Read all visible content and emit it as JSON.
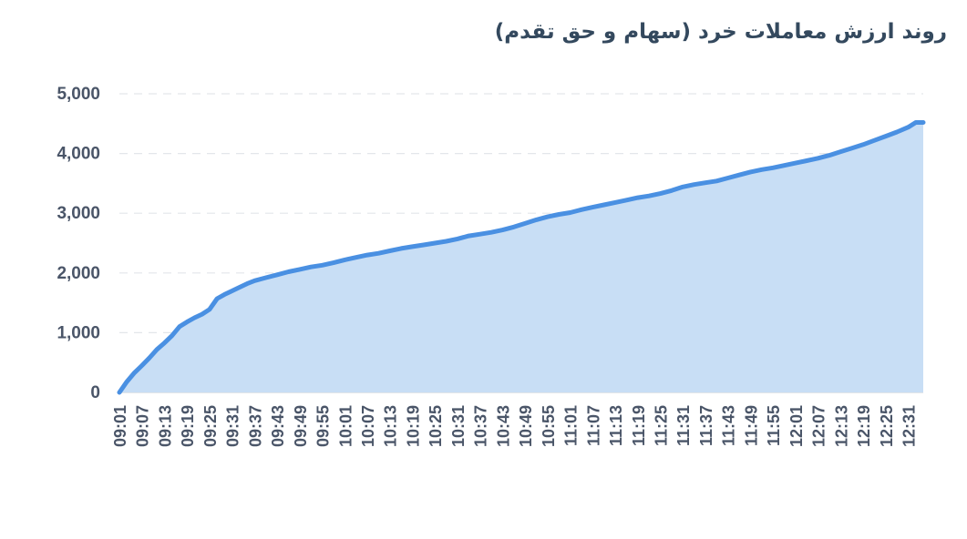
{
  "chart_data": {
    "type": "area",
    "title": "روند ارزش معاملات خرد (سهام و حق تقدم)",
    "xlabel": "",
    "ylabel": "",
    "ylim": [
      0,
      5000
    ],
    "y_ticks": [
      "0",
      "1,000",
      "2,000",
      "3,000",
      "4,000",
      "5,000"
    ],
    "grid": true,
    "legend": "none",
    "colors": {
      "line": "#4a90e2",
      "fill": "#c8def5",
      "grid": "#e3e6ea",
      "text": "#4a5568",
      "title": "#34495e"
    },
    "x_ticks": [
      "09:01",
      "09:07",
      "09:13",
      "09:19",
      "09:25",
      "09:31",
      "09:37",
      "09:43",
      "09:49",
      "09:55",
      "10:01",
      "10:07",
      "10:13",
      "10:19",
      "10:25",
      "10:31",
      "10:37",
      "10:43",
      "10:49",
      "10:55",
      "11:01",
      "11:07",
      "11:13",
      "11:19",
      "11:25",
      "11:31",
      "11:37",
      "11:43",
      "11:49",
      "11:55",
      "12:01",
      "12:07",
      "12:13",
      "12:19",
      "12:25",
      "12:31"
    ],
    "series": [
      {
        "x": [
          "09:01",
          "09:03",
          "09:05",
          "09:07",
          "09:09",
          "09:11",
          "09:13",
          "09:15",
          "09:17",
          "09:19",
          "09:21",
          "09:23",
          "09:25",
          "09:27",
          "09:29",
          "09:31",
          "09:33",
          "09:35",
          "09:37",
          "09:40",
          "09:43",
          "09:46",
          "09:49",
          "09:52",
          "09:55",
          "09:58",
          "10:01",
          "10:04",
          "10:07",
          "10:10",
          "10:13",
          "10:16",
          "10:19",
          "10:22",
          "10:25",
          "10:28",
          "10:31",
          "10:34",
          "10:37",
          "10:40",
          "10:43",
          "10:46",
          "10:49",
          "10:52",
          "10:55",
          "10:58",
          "11:01",
          "11:04",
          "11:07",
          "11:10",
          "11:13",
          "11:16",
          "11:19",
          "11:22",
          "11:25",
          "11:28",
          "11:31",
          "11:34",
          "11:37",
          "11:40",
          "11:43",
          "11:46",
          "11:49",
          "11:52",
          "11:55",
          "11:58",
          "12:01",
          "12:04",
          "12:07",
          "12:10",
          "12:13",
          "12:16",
          "12:19",
          "12:22",
          "12:25",
          "12:28",
          "12:31",
          "12:33",
          "12:35"
        ],
        "values": [
          0,
          180,
          330,
          450,
          580,
          720,
          830,
          950,
          1100,
          1180,
          1250,
          1310,
          1390,
          1570,
          1640,
          1700,
          1760,
          1820,
          1870,
          1920,
          1970,
          2020,
          2060,
          2100,
          2130,
          2170,
          2220,
          2260,
          2300,
          2330,
          2370,
          2410,
          2440,
          2470,
          2500,
          2530,
          2570,
          2620,
          2650,
          2680,
          2720,
          2770,
          2830,
          2890,
          2940,
          2980,
          3010,
          3060,
          3100,
          3140,
          3180,
          3220,
          3260,
          3290,
          3330,
          3380,
          3440,
          3480,
          3510,
          3540,
          3590,
          3640,
          3690,
          3730,
          3760,
          3800,
          3840,
          3880,
          3920,
          3970,
          4030,
          4090,
          4150,
          4220,
          4290,
          4360,
          4440,
          4520,
          4520
        ]
      }
    ]
  }
}
